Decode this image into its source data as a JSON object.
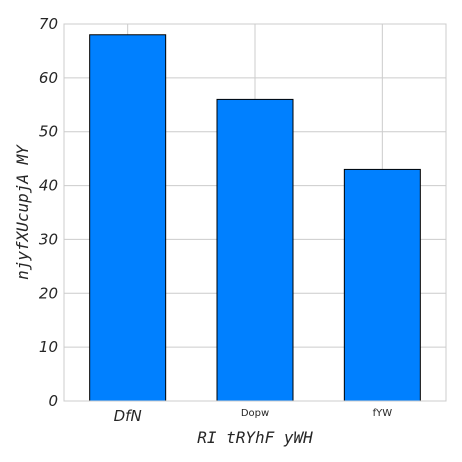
{
  "chart_data": {
    "type": "bar",
    "categories": [
      "DfN",
      "Dopw",
      "fYW"
    ],
    "values": [
      68,
      56,
      43
    ],
    "xlabel": "RI tRYhF yWH",
    "ylabel": "njyfXUcupjA MY",
    "ylim": [
      0,
      70
    ],
    "yticks": [
      "0",
      "10",
      "20",
      "30",
      "40",
      "50",
      "60",
      "70"
    ],
    "grid": true,
    "bar_color": "#0080ff",
    "edge_color": "#000000"
  }
}
